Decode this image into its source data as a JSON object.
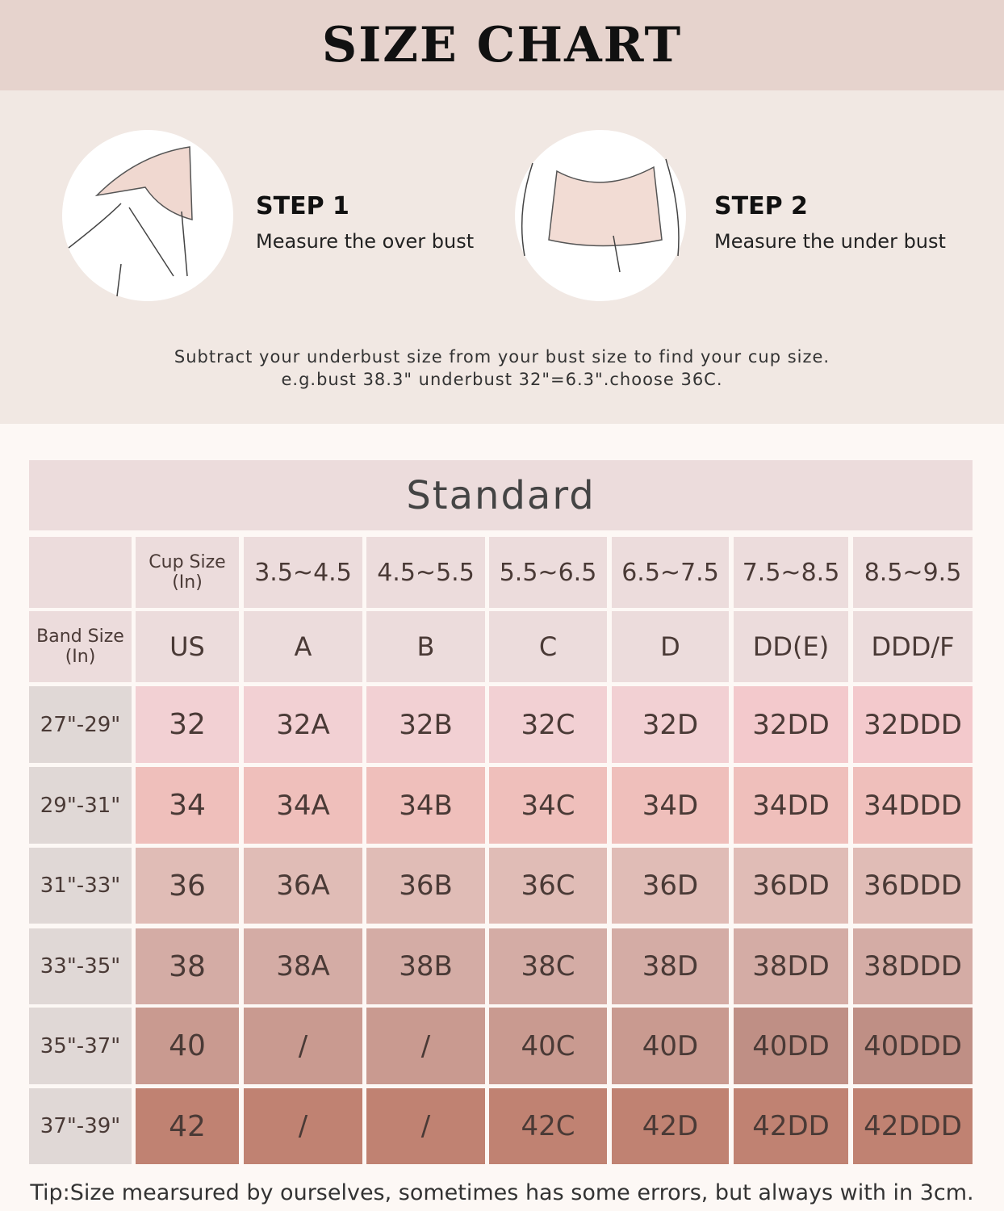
{
  "header": {
    "title": "SIZE CHART"
  },
  "steps": [
    {
      "title": "STEP 1",
      "text": "Measure the over bust"
    },
    {
      "title": "STEP 2",
      "text": "Measure the under bust"
    }
  ],
  "note": [
    "Subtract your underbust size from your bust size to find your cup size.",
    "e.g.bust 38.3\" underbust 32\"=6.3\".choose 36C."
  ],
  "table": {
    "title": "Standard",
    "cup_label": [
      "Cup Size",
      "(In)"
    ],
    "band_label": [
      "Band Size",
      "(In)"
    ],
    "us_label": "US",
    "cup_ranges": [
      "3.5~4.5",
      "4.5~5.5",
      "5.5~6.5",
      "6.5~7.5",
      "7.5~8.5",
      "8.5~9.5"
    ],
    "cup_letters": [
      "A",
      "B",
      "C",
      "D",
      "DD(E)",
      "DDD/F"
    ],
    "rows": [
      {
        "band": "27\"-29\"",
        "us": "32",
        "sizes": [
          "32A",
          "32B",
          "32C",
          "32D",
          "32DD",
          "32DDD"
        ]
      },
      {
        "band": "29\"-31\"",
        "us": "34",
        "sizes": [
          "34A",
          "34B",
          "34C",
          "34D",
          "34DD",
          "34DDD"
        ]
      },
      {
        "band": "31\"-33\"",
        "us": "36",
        "sizes": [
          "36A",
          "36B",
          "36C",
          "36D",
          "36DD",
          "36DDD"
        ]
      },
      {
        "band": "33\"-35\"",
        "us": "38",
        "sizes": [
          "38A",
          "38B",
          "38C",
          "38D",
          "38DD",
          "38DDD"
        ]
      },
      {
        "band": "35\"-37\"",
        "us": "40",
        "sizes": [
          "/",
          "/",
          "40C",
          "40D",
          "40DD",
          "40DDD"
        ]
      },
      {
        "band": "37\"-39\"",
        "us": "42",
        "sizes": [
          "/",
          "/",
          "42C",
          "42D",
          "42DD",
          "42DDD"
        ]
      }
    ]
  },
  "tip": "Tip:Size mearsured by ourselves, sometimes has some errors, but always with in 3cm."
}
